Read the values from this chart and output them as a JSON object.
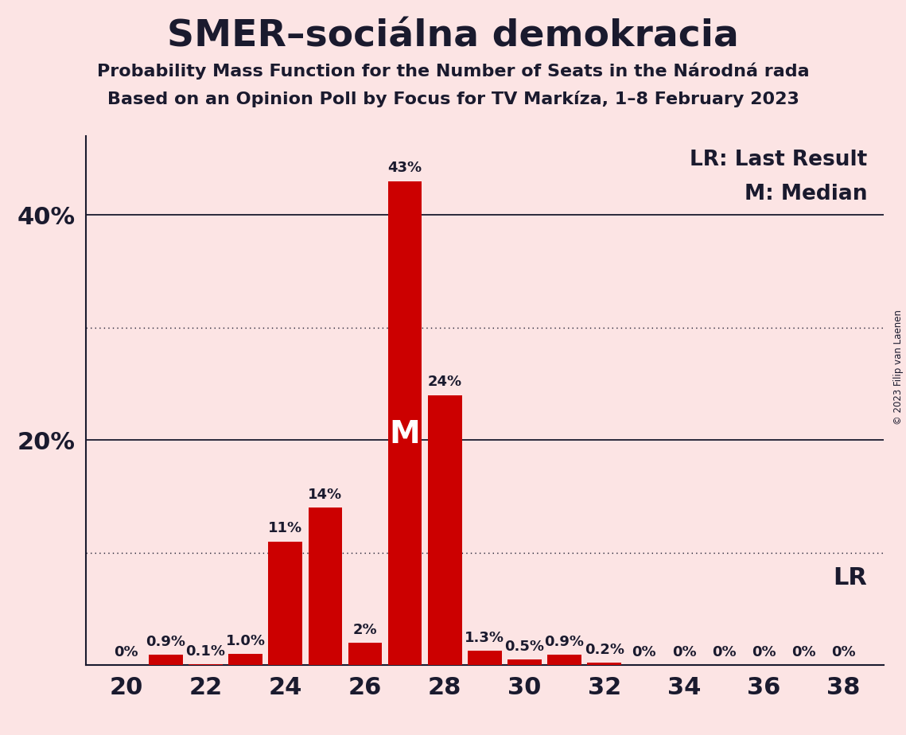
{
  "title": "SMER–sociálna demokracia",
  "subtitle1": "Probability Mass Function for the Number of Seats in the Národná rada",
  "subtitle2": "Based on an Opinion Poll by Focus for TV Markíza, 1–8 February 2023",
  "copyright": "© 2023 Filip van Laenen",
  "seats": [
    20,
    21,
    22,
    23,
    24,
    25,
    26,
    27,
    28,
    29,
    30,
    31,
    32,
    33,
    34,
    35,
    36,
    37,
    38
  ],
  "probabilities": [
    0.0,
    0.9,
    0.1,
    1.0,
    11.0,
    14.0,
    2.0,
    43.0,
    24.0,
    1.3,
    0.5,
    0.9,
    0.2,
    0.0,
    0.0,
    0.0,
    0.0,
    0.0,
    0.0
  ],
  "labels": [
    "0%",
    "0.9%",
    "0.1%",
    "1.0%",
    "11%",
    "14%",
    "2%",
    "43%",
    "24%",
    "1.3%",
    "0.5%",
    "0.9%",
    "0.2%",
    "0%",
    "0%",
    "0%",
    "0%",
    "0%",
    "0%"
  ],
  "bar_color": "#cc0000",
  "background_color": "#fce4e4",
  "text_color": "#1a1a2e",
  "median_seat": 27,
  "lr_seat": 32,
  "xlim": [
    19,
    39
  ],
  "ylim": [
    0,
    47
  ],
  "xticks": [
    20,
    22,
    24,
    26,
    28,
    30,
    32,
    34,
    36,
    38
  ],
  "yticks_labeled": [
    20,
    40
  ],
  "ytick_labels": [
    "20%",
    "40%"
  ],
  "solid_gridlines": [
    20.0,
    40.0
  ],
  "dotted_gridlines": [
    10.0,
    30.0
  ],
  "title_fontsize": 34,
  "subtitle_fontsize": 16,
  "axis_fontsize": 22,
  "label_fontsize": 13,
  "annotation_fontsize": 19,
  "lr_annotation_fontsize": 22,
  "median_m_fontsize": 28
}
